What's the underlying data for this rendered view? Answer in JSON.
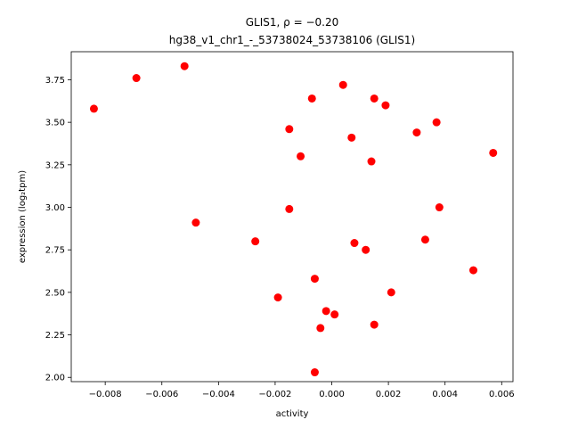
{
  "chart_data": {
    "type": "scatter",
    "title_line1": "GLIS1, ρ = −0.20",
    "title_line2": "hg38_v1_chr1_-_53738024_53738106 (GLIS1)",
    "xlabel": "activity",
    "ylabel": "expression (log₂tpm)",
    "xlim": [
      -0.0092,
      0.0064
    ],
    "ylim": [
      1.975,
      3.915
    ],
    "xticks": [
      -0.008,
      -0.006,
      -0.004,
      -0.002,
      0.0,
      0.002,
      0.004,
      0.006
    ],
    "xtick_labels": [
      "−0.008",
      "−0.006",
      "−0.004",
      "−0.002",
      "0.000",
      "0.002",
      "0.004",
      "0.006"
    ],
    "yticks": [
      2.0,
      2.25,
      2.5,
      2.75,
      3.0,
      3.25,
      3.5,
      3.75
    ],
    "ytick_labels": [
      "2.00",
      "2.25",
      "2.50",
      "2.75",
      "3.00",
      "3.25",
      "3.50",
      "3.75"
    ],
    "grid": false,
    "marker_color": "#ff0000",
    "points": [
      {
        "x": -0.0084,
        "y": 3.58
      },
      {
        "x": -0.0069,
        "y": 3.76
      },
      {
        "x": -0.0052,
        "y": 3.83
      },
      {
        "x": -0.0048,
        "y": 2.91
      },
      {
        "x": -0.0027,
        "y": 2.8
      },
      {
        "x": -0.0019,
        "y": 2.47
      },
      {
        "x": -0.0015,
        "y": 3.46
      },
      {
        "x": -0.0015,
        "y": 2.99
      },
      {
        "x": -0.0011,
        "y": 3.3
      },
      {
        "x": -0.0007,
        "y": 3.64
      },
      {
        "x": -0.0006,
        "y": 2.58
      },
      {
        "x": -0.0006,
        "y": 2.03
      },
      {
        "x": -0.0004,
        "y": 2.29
      },
      {
        "x": -0.0002,
        "y": 2.39
      },
      {
        "x": 0.0001,
        "y": 2.37
      },
      {
        "x": 0.0004,
        "y": 3.72
      },
      {
        "x": 0.0007,
        "y": 3.41
      },
      {
        "x": 0.0008,
        "y": 2.79
      },
      {
        "x": 0.0012,
        "y": 2.75
      },
      {
        "x": 0.0014,
        "y": 3.27
      },
      {
        "x": 0.0015,
        "y": 3.64
      },
      {
        "x": 0.0015,
        "y": 2.31
      },
      {
        "x": 0.0019,
        "y": 3.6
      },
      {
        "x": 0.0021,
        "y": 2.5
      },
      {
        "x": 0.003,
        "y": 3.44
      },
      {
        "x": 0.0033,
        "y": 2.81
      },
      {
        "x": 0.0037,
        "y": 3.5
      },
      {
        "x": 0.0038,
        "y": 3.0
      },
      {
        "x": 0.005,
        "y": 2.63
      },
      {
        "x": 0.0057,
        "y": 3.32
      }
    ]
  }
}
